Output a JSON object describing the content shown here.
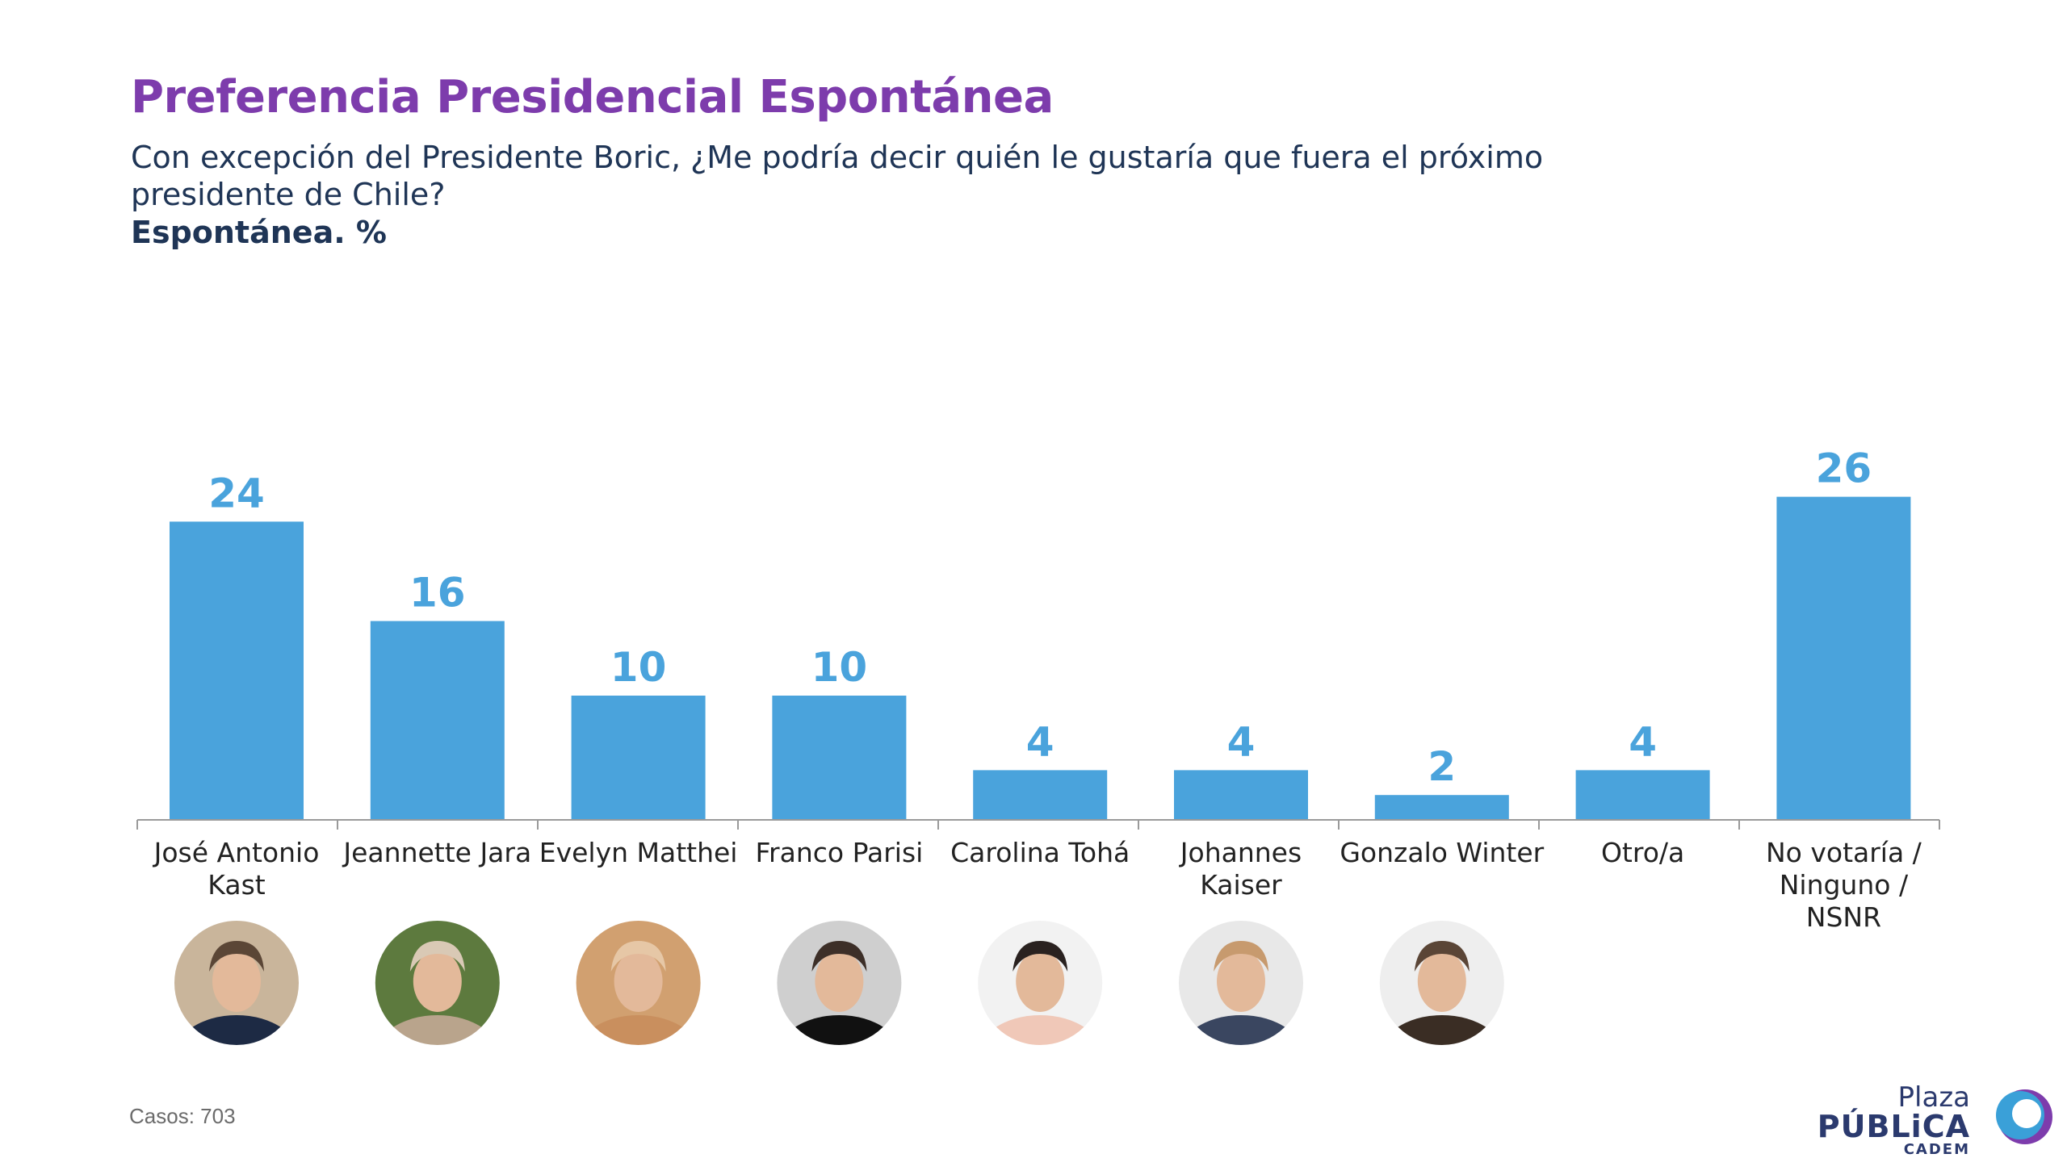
{
  "header": {
    "title": "Preferencia Presidencial Espontánea",
    "subtitle": "Con excepción del Presidente Boric, ¿Me podría decir quién le gustaría que fuera el próximo presidente de Chile?",
    "metric_label": "Espontánea. %"
  },
  "chart_data": {
    "type": "bar",
    "categories": [
      [
        "José Antonio",
        "Kast"
      ],
      [
        "Jeannette Jara"
      ],
      [
        "Evelyn Matthei"
      ],
      [
        "Franco Parisi"
      ],
      [
        "Carolina Tohá"
      ],
      [
        "Johannes",
        "Kaiser"
      ],
      [
        "Gonzalo Winter"
      ],
      [
        "Otro/a"
      ],
      [
        "No votaría /",
        "Ninguno /",
        "NSNR"
      ]
    ],
    "values": [
      24,
      16,
      10,
      10,
      4,
      4,
      2,
      4,
      26
    ],
    "data_labels": [
      "24",
      "16",
      "10",
      "10",
      "4",
      "4",
      "2",
      "4",
      "26"
    ],
    "photos": [
      true,
      true,
      true,
      true,
      true,
      true,
      true,
      false,
      false
    ],
    "bar_color": "#4aa3dc",
    "title": "",
    "xlabel": "",
    "ylabel": "",
    "ylim": [
      0,
      30
    ],
    "grid": false
  },
  "footer": {
    "cases": "Casos: 703",
    "logo_plaza": "Plaza",
    "logo_publica": "PÚBLiCA",
    "logo_cadem": "CADEM"
  },
  "colors": {
    "title": "#7d3cac",
    "text": "#1f3556",
    "bar": "#4aa3dc",
    "axis": "#9a9a9a"
  }
}
